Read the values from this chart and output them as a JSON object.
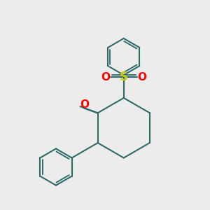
{
  "background_color": "#ececec",
  "bond_color": "#2d6b6b",
  "bond_width": 1.5,
  "so2_s_color": "#cccc00",
  "so2_o_color": "#ff0000",
  "ketone_o_color": "#ff0000",
  "font_size_s": 12,
  "font_size_o": 11,
  "xlim": [
    -2.2,
    2.0
  ],
  "ylim": [
    -2.5,
    2.5
  ]
}
